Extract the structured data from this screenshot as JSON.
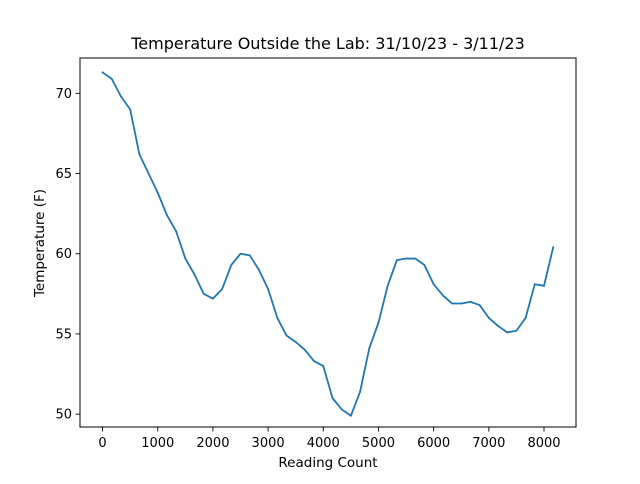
{
  "chart_data": {
    "type": "line",
    "title": "Temperature Outside the Lab: 31/10/23 - 3/11/23",
    "xlabel": "Reading Count",
    "ylabel": "Temperature (F)",
    "xlim": [
      -409,
      8580
    ],
    "ylim": [
      49.2,
      72.2
    ],
    "xticks": [
      0,
      1000,
      2000,
      3000,
      4000,
      5000,
      6000,
      7000,
      8000
    ],
    "yticks": [
      50,
      55,
      60,
      65,
      70
    ],
    "grid": false,
    "line_color": "#1f77b4",
    "series": [
      {
        "x": [
          0,
          167,
          333,
          500,
          667,
          833,
          1000,
          1167,
          1333,
          1500,
          1667,
          1833,
          2000,
          2167,
          2333,
          2500,
          2667,
          2833,
          3000,
          3167,
          3333,
          3500,
          3667,
          3833,
          4000,
          4167,
          4333,
          4500,
          4667,
          4833,
          5000,
          5167,
          5333,
          5500,
          5667,
          5833,
          6000,
          6167,
          6333,
          6500,
          6667,
          6833,
          7000,
          7167,
          7333,
          7500,
          7667,
          7833,
          8000,
          8167
        ],
        "y": [
          71.3,
          70.9,
          69.8,
          69.0,
          66.2,
          65.0,
          63.8,
          62.4,
          61.4,
          59.7,
          58.7,
          57.5,
          57.2,
          57.8,
          59.3,
          60.0,
          59.9,
          59.0,
          57.8,
          56.0,
          54.9,
          54.5,
          54.0,
          53.3,
          53.0,
          51.0,
          50.3,
          49.9,
          51.4,
          54.1,
          55.7,
          58.0,
          59.6,
          59.7,
          59.7,
          59.3,
          58.1,
          57.4,
          56.9,
          56.9,
          57.0,
          56.8,
          56.0,
          55.5,
          55.1,
          55.2,
          56.0,
          58.1,
          58.0,
          60.4
        ]
      }
    ]
  }
}
